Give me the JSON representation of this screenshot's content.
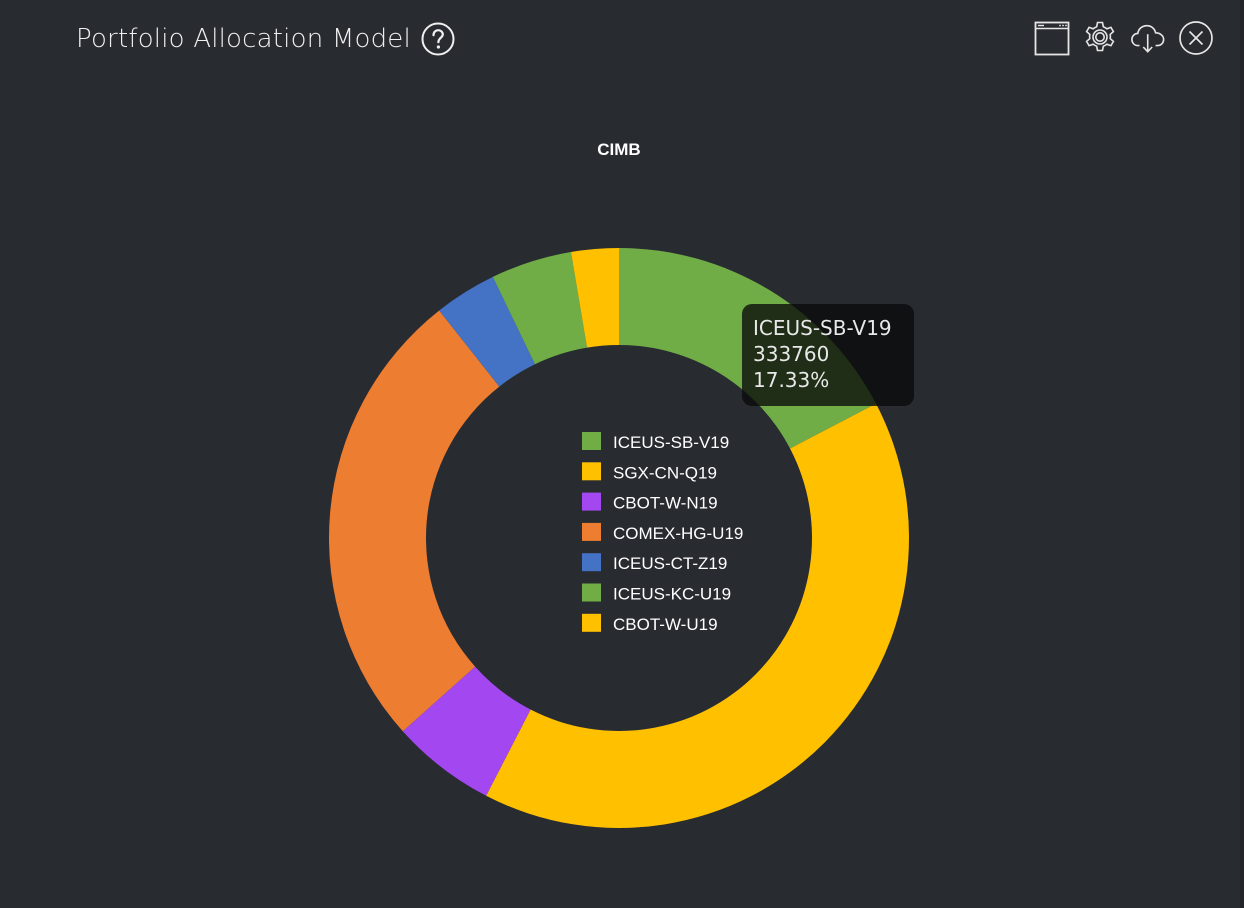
{
  "header": {
    "title": "Portfolio Allocation Model"
  },
  "toolbar": {
    "icons": [
      "window-icon",
      "gear-icon",
      "cloud-download-icon",
      "close-icon"
    ]
  },
  "colors": {
    "background": "#282b30",
    "green": "#70ad47",
    "yellow": "#ffc000",
    "purple": "#a347f0",
    "orange": "#ed7d31",
    "blue": "#4472c4"
  },
  "chart_data": {
    "type": "pie",
    "donut": true,
    "title": "CIMB",
    "legend_position": "center",
    "slices": [
      {
        "label": "ICEUS-SB-V19",
        "value": 333760,
        "percent": 17.33,
        "color": "#70ad47"
      },
      {
        "label": "SGX-CN-Q19",
        "value": 775000,
        "percent": 40.25,
        "color": "#ffc000"
      },
      {
        "label": "CBOT-W-N19",
        "value": 112000,
        "percent": 5.8,
        "color": "#a347f0"
      },
      {
        "label": "COMEX-HG-U19",
        "value": 500000,
        "percent": 25.95,
        "color": "#ed7d31"
      },
      {
        "label": "ICEUS-CT-Z19",
        "value": 67000,
        "percent": 3.5,
        "color": "#4472c4"
      },
      {
        "label": "ICEUS-KC-U19",
        "value": 87000,
        "percent": 4.5,
        "color": "#70ad47"
      },
      {
        "label": "CBOT-W-U19",
        "value": 51000,
        "percent": 2.67,
        "color": "#ffc000"
      }
    ]
  },
  "tooltip": {
    "label": "ICEUS-SB-V19",
    "value": "333760",
    "percent": "17.33%"
  }
}
